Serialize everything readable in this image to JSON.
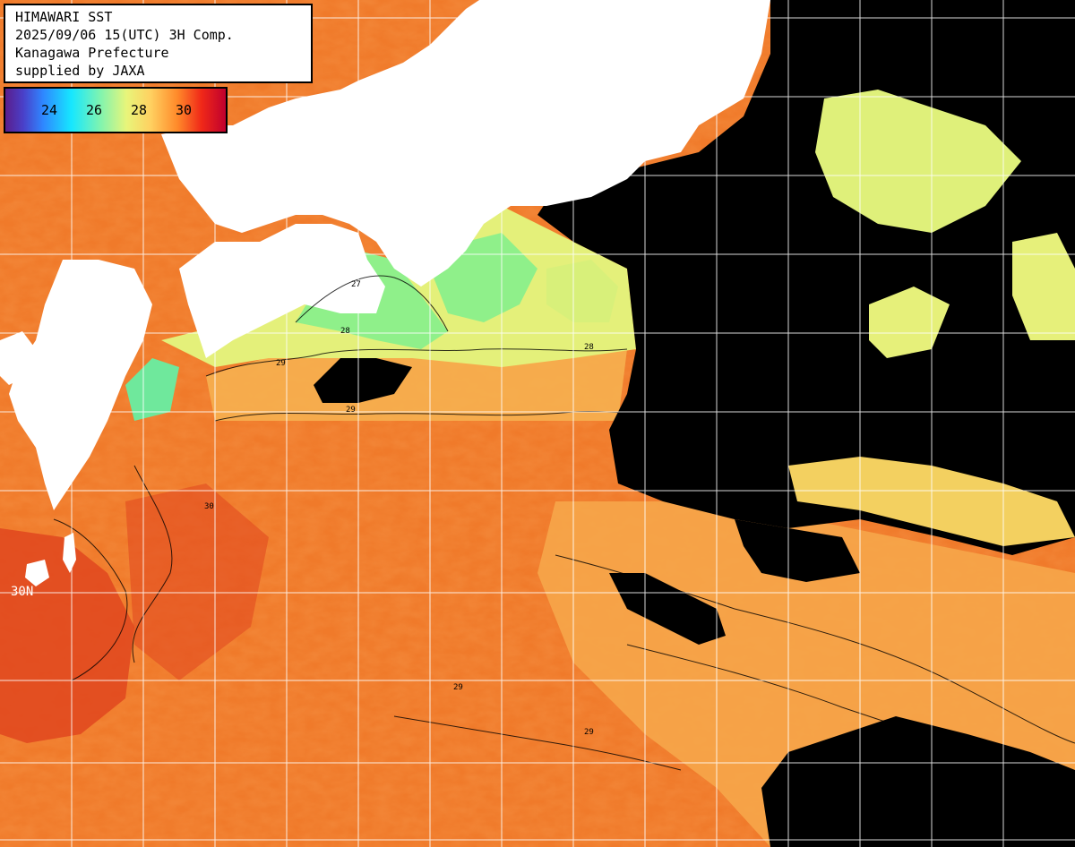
{
  "info": {
    "line1": "HIMAWARI SST",
    "line2": "2025/09/06 15(UTC) 3H Comp.",
    "line3": "Kanagawa Prefecture",
    "line4": "supplied by JAXA"
  },
  "legend": {
    "ticks": [
      "24",
      "26",
      "28",
      "30"
    ]
  },
  "latitude_label": "30N",
  "colors": {
    "land": "#ffffff",
    "cloud_no_data": "#000000",
    "sea_warm": "#f07a2a",
    "sea_hot": "#e0401e",
    "sea_mild": "#f6a64a",
    "sea_cool": "#ecf27a",
    "sea_cooler": "#8ff08a",
    "grid": "#ffffff",
    "contour": "#000000"
  },
  "contour_labels": [
    "27",
    "28",
    "29",
    "30"
  ]
}
